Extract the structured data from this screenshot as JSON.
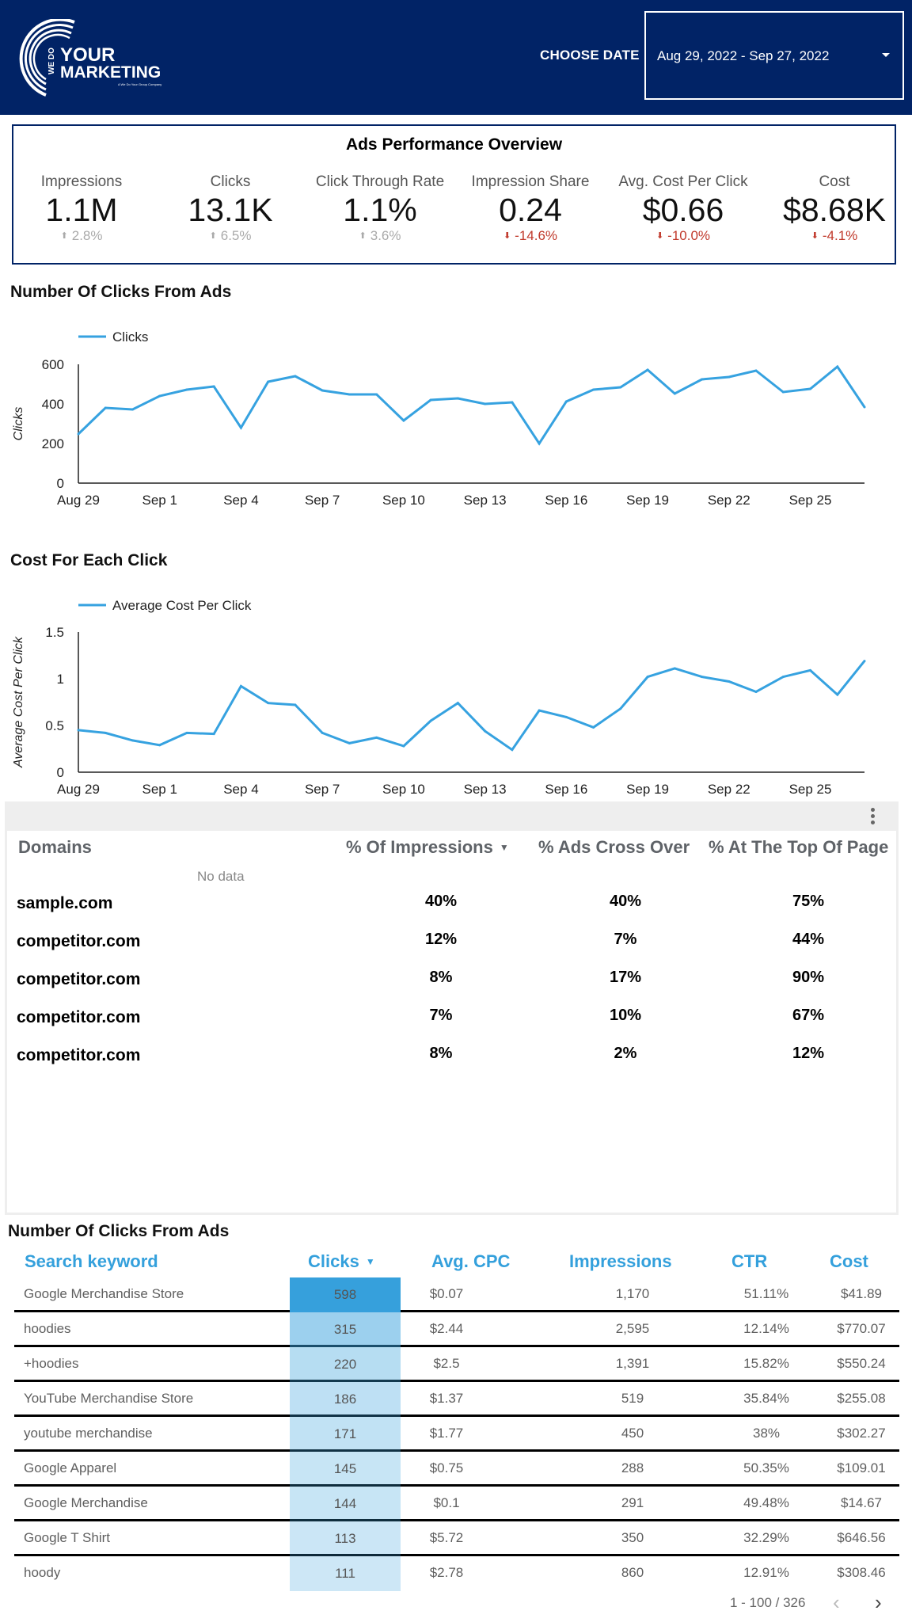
{
  "header": {
    "logo": {
      "line1_small": "WE DO",
      "line1": "YOUR",
      "line2": "MARKETING",
      "tagline": "A We Do Your Group Company"
    },
    "choose_date_label": "CHOOSE DATE",
    "date_range": "Aug 29, 2022 - Sep 27, 2022",
    "brand_color": "#012366"
  },
  "overview": {
    "title": "Ads Performance Overview",
    "kpis": [
      {
        "label": "Impressions",
        "value": "1.1M",
        "delta": "2.8%",
        "direction": "up"
      },
      {
        "label": "Clicks",
        "value": "13.1K",
        "delta": "6.5%",
        "direction": "up"
      },
      {
        "label": "Click Through Rate",
        "value": "1.1%",
        "delta": "3.6%",
        "direction": "up"
      },
      {
        "label": "Impression Share",
        "value": "0.24",
        "delta": "-14.6%",
        "direction": "down"
      },
      {
        "label": "Avg. Cost Per Click",
        "value": "$0.66",
        "delta": "-10.0%",
        "direction": "down"
      },
      {
        "label": "Cost",
        "value": "$8.68K",
        "delta": "-4.1%",
        "direction": "down"
      }
    ]
  },
  "sections": {
    "clicks_chart_title": "Number Of Clicks From Ads",
    "cpc_chart_title": "Cost For Each Click",
    "keyword_table_title": "Number Of Clicks From Ads"
  },
  "chart_data": [
    {
      "type": "line",
      "title": "Number Of Clicks From Ads",
      "xlabel": "",
      "ylabel": "Clicks",
      "ylim": [
        0,
        600
      ],
      "yticks": [
        "0",
        "200",
        "400",
        "600"
      ],
      "xticks": [
        "Aug 29",
        "Sep 1",
        "Sep 4",
        "Sep 7",
        "Sep 10",
        "Sep 13",
        "Sep 16",
        "Sep 19",
        "Sep 22",
        "Sep 25"
      ],
      "legend": "top-left",
      "grid": false,
      "color": "#36a2e0",
      "x": [
        "Aug 29",
        "Aug 30",
        "Aug 31",
        "Sep 1",
        "Sep 2",
        "Sep 3",
        "Sep 4",
        "Sep 5",
        "Sep 6",
        "Sep 7",
        "Sep 8",
        "Sep 9",
        "Sep 10",
        "Sep 11",
        "Sep 12",
        "Sep 13",
        "Sep 14",
        "Sep 15",
        "Sep 16",
        "Sep 17",
        "Sep 18",
        "Sep 19",
        "Sep 20",
        "Sep 21",
        "Sep 22",
        "Sep 23",
        "Sep 24",
        "Sep 25",
        "Sep 26",
        "Sep 27"
      ],
      "series": [
        {
          "name": "Clicks",
          "values": [
            248,
            380,
            372,
            440,
            472,
            488,
            280,
            512,
            540,
            468,
            448,
            448,
            316,
            420,
            428,
            400,
            408,
            200,
            412,
            472,
            484,
            572,
            452,
            524,
            536,
            568,
            460,
            476,
            588,
            384
          ]
        }
      ]
    },
    {
      "type": "line",
      "title": "Cost For Each Click",
      "xlabel": "",
      "ylabel": "Average Cost Per Click",
      "ylim": [
        0,
        1.5
      ],
      "yticks": [
        "0",
        "0.5",
        "1",
        "1.5"
      ],
      "xticks": [
        "Aug 29",
        "Sep 1",
        "Sep 4",
        "Sep 7",
        "Sep 10",
        "Sep 13",
        "Sep 16",
        "Sep 19",
        "Sep 22",
        "Sep 25"
      ],
      "legend": "top-left",
      "grid": false,
      "color": "#36a2e0",
      "x": [
        "Aug 29",
        "Aug 30",
        "Aug 31",
        "Sep 1",
        "Sep 2",
        "Sep 3",
        "Sep 4",
        "Sep 5",
        "Sep 6",
        "Sep 7",
        "Sep 8",
        "Sep 9",
        "Sep 10",
        "Sep 11",
        "Sep 12",
        "Sep 13",
        "Sep 14",
        "Sep 15",
        "Sep 16",
        "Sep 17",
        "Sep 18",
        "Sep 19",
        "Sep 20",
        "Sep 21",
        "Sep 22",
        "Sep 23",
        "Sep 24",
        "Sep 25",
        "Sep 26",
        "Sep 27"
      ],
      "series": [
        {
          "name": "Average Cost Per Click",
          "values": [
            0.45,
            0.42,
            0.34,
            0.29,
            0.42,
            0.41,
            0.92,
            0.74,
            0.72,
            0.42,
            0.31,
            0.37,
            0.28,
            0.55,
            0.74,
            0.44,
            0.24,
            0.66,
            0.59,
            0.48,
            0.68,
            1.02,
            1.11,
            1.02,
            0.97,
            0.86,
            1.02,
            1.09,
            0.83,
            1.19
          ]
        }
      ]
    }
  ],
  "domains_table": {
    "no_data_text": "No data",
    "columns": [
      "Domains",
      "% Of Impressions",
      "% Ads Cross Over",
      "% At The Top Of Page"
    ],
    "sorted_column": "% Of Impressions",
    "rows": [
      {
        "domain": "sample.com",
        "impressions": "40%",
        "cross_over": "40%",
        "top_of_page": "75%"
      },
      {
        "domain": "competitor.com",
        "impressions": "12%",
        "cross_over": "7%",
        "top_of_page": "44%"
      },
      {
        "domain": "competitor.com",
        "impressions": "8%",
        "cross_over": "17%",
        "top_of_page": "90%"
      },
      {
        "domain": "competitor.com",
        "impressions": "7%",
        "cross_over": "10%",
        "top_of_page": "67%"
      },
      {
        "domain": "competitor.com",
        "impressions": "8%",
        "cross_over": "2%",
        "top_of_page": "12%"
      }
    ]
  },
  "keyword_table": {
    "columns": [
      "Search keyword",
      "Clicks",
      "Avg. CPC",
      "Impressions",
      "CTR",
      "Cost"
    ],
    "sorted_column": "Clicks",
    "header_color": "#34a0dc",
    "rows": [
      {
        "keyword": "Google Merchandise Store",
        "clicks": "598",
        "avg_cpc": "$0.07",
        "impressions": "1,170",
        "ctr": "51.11%",
        "cost": "$41.89"
      },
      {
        "keyword": "hoodies",
        "clicks": "315",
        "avg_cpc": "$2.44",
        "impressions": "2,595",
        "ctr": "12.14%",
        "cost": "$770.07"
      },
      {
        "keyword": "+hoodies",
        "clicks": "220",
        "avg_cpc": "$2.5",
        "impressions": "1,391",
        "ctr": "15.82%",
        "cost": "$550.24"
      },
      {
        "keyword": "YouTube Merchandise Store",
        "clicks": "186",
        "avg_cpc": "$1.37",
        "impressions": "519",
        "ctr": "35.84%",
        "cost": "$255.08"
      },
      {
        "keyword": "youtube merchandise",
        "clicks": "171",
        "avg_cpc": "$1.77",
        "impressions": "450",
        "ctr": "38%",
        "cost": "$302.27"
      },
      {
        "keyword": "Google Apparel",
        "clicks": "145",
        "avg_cpc": "$0.75",
        "impressions": "288",
        "ctr": "50.35%",
        "cost": "$109.01"
      },
      {
        "keyword": "Google Merchandise",
        "clicks": "144",
        "avg_cpc": "$0.1",
        "impressions": "291",
        "ctr": "49.48%",
        "cost": "$14.67"
      },
      {
        "keyword": "Google T Shirt",
        "clicks": "113",
        "avg_cpc": "$5.72",
        "impressions": "350",
        "ctr": "32.29%",
        "cost": "$646.56"
      },
      {
        "keyword": "hoody",
        "clicks": "111",
        "avg_cpc": "$2.78",
        "impressions": "860",
        "ctr": "12.91%",
        "cost": "$308.46"
      }
    ],
    "pagination": {
      "label": "1 - 100 / 326",
      "prev": "‹",
      "next": "›"
    }
  }
}
